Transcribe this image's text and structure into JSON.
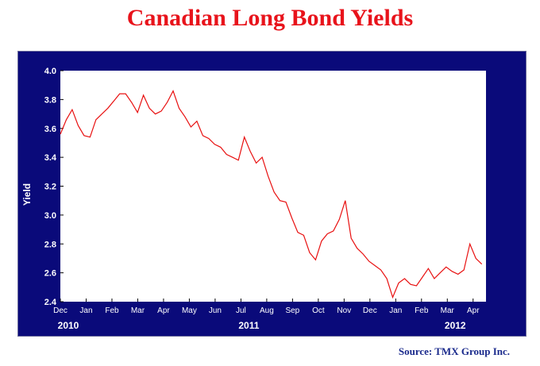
{
  "title": "Canadian Long Bond Yields",
  "source": "Source: TMX Group Inc.",
  "colors": {
    "frame": "#0a0a7a",
    "title": "#e8131b",
    "line": "#e81010",
    "source": "#1a2a8c"
  },
  "chart_data": {
    "type": "line",
    "title": "Canadian Long Bond Yields",
    "ylabel": "Yield",
    "xlabel": "",
    "ylim": [
      2.4,
      4.0
    ],
    "yticks": [
      "4.0",
      "3.8",
      "3.6",
      "3.4",
      "3.2",
      "3.0",
      "2.8",
      "2.6",
      "2.4"
    ],
    "xlim": [
      "2010-12-01",
      "2012-04-16"
    ],
    "month_labels": [
      "Dec",
      "Jan",
      "Feb",
      "Mar",
      "Apr",
      "May",
      "Jun",
      "Jul",
      "Aug",
      "Sep",
      "Oct",
      "Nov",
      "Dec",
      "Jan",
      "Feb",
      "Mar",
      "Apr"
    ],
    "year_labels": [
      {
        "label": "2010",
        "month_index": 0
      },
      {
        "label": "2011",
        "month_index": 7
      },
      {
        "label": "2012",
        "month_index": 15
      }
    ],
    "grid": false,
    "series": [
      {
        "name": "",
        "color": "#e81010",
        "x": [
          "2010-12-01",
          "2010-12-08",
          "2010-12-15",
          "2010-12-22",
          "2010-12-29",
          "2011-01-05",
          "2011-01-12",
          "2011-01-19",
          "2011-01-26",
          "2011-02-02",
          "2011-02-09",
          "2011-02-16",
          "2011-02-23",
          "2011-03-02",
          "2011-03-09",
          "2011-03-16",
          "2011-03-23",
          "2011-03-30",
          "2011-04-06",
          "2011-04-13",
          "2011-04-20",
          "2011-04-27",
          "2011-05-04",
          "2011-05-11",
          "2011-05-18",
          "2011-05-25",
          "2011-06-01",
          "2011-06-08",
          "2011-06-15",
          "2011-06-22",
          "2011-06-29",
          "2011-07-06",
          "2011-07-13",
          "2011-07-20",
          "2011-07-27",
          "2011-08-03",
          "2011-08-10",
          "2011-08-17",
          "2011-08-24",
          "2011-08-31",
          "2011-09-07",
          "2011-09-14",
          "2011-09-21",
          "2011-09-28",
          "2011-10-05",
          "2011-10-12",
          "2011-10-19",
          "2011-10-26",
          "2011-11-02",
          "2011-11-09",
          "2011-11-16",
          "2011-11-23",
          "2011-11-30",
          "2011-12-07",
          "2011-12-14",
          "2011-12-21",
          "2011-12-28",
          "2012-01-04",
          "2012-01-11",
          "2012-01-18",
          "2012-01-25",
          "2012-02-01",
          "2012-02-08",
          "2012-02-15",
          "2012-02-22",
          "2012-02-29",
          "2012-03-07",
          "2012-03-14",
          "2012-03-21",
          "2012-03-28",
          "2012-04-04",
          "2012-04-11"
        ],
        "values": [
          3.56,
          3.66,
          3.73,
          3.62,
          3.55,
          3.54,
          3.66,
          3.7,
          3.74,
          3.79,
          3.84,
          3.84,
          3.78,
          3.71,
          3.83,
          3.74,
          3.7,
          3.72,
          3.78,
          3.86,
          3.74,
          3.68,
          3.61,
          3.65,
          3.55,
          3.53,
          3.49,
          3.47,
          3.42,
          3.4,
          3.38,
          3.54,
          3.44,
          3.36,
          3.4,
          3.27,
          3.16,
          3.1,
          3.09,
          2.98,
          2.88,
          2.86,
          2.74,
          2.69,
          2.82,
          2.87,
          2.89,
          2.97,
          3.1,
          2.84,
          2.77,
          2.73,
          2.68,
          2.65,
          2.62,
          2.56,
          2.43,
          2.53,
          2.56,
          2.52,
          2.51,
          2.57,
          2.63,
          2.56,
          2.6,
          2.64,
          2.61,
          2.59,
          2.62,
          2.8,
          2.7,
          2.66
        ]
      }
    ]
  }
}
